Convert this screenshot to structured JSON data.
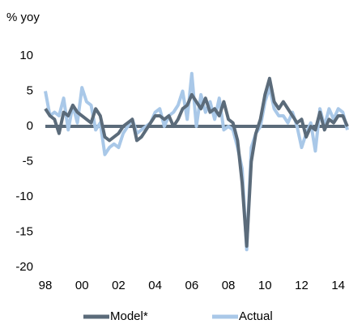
{
  "chart_data": {
    "type": "line",
    "y_label": "% yoy",
    "x": [
      1998,
      1998.25,
      1998.5,
      1998.75,
      1999,
      1999.25,
      1999.5,
      1999.75,
      2000,
      2000.25,
      2000.5,
      2000.75,
      2001,
      2001.25,
      2001.5,
      2001.75,
      2002,
      2002.25,
      2002.5,
      2002.75,
      2003,
      2003.25,
      2003.5,
      2003.75,
      2004,
      2004.25,
      2004.5,
      2004.75,
      2005,
      2005.25,
      2005.5,
      2005.75,
      2006,
      2006.25,
      2006.5,
      2006.75,
      2007,
      2007.25,
      2007.5,
      2007.75,
      2008,
      2008.25,
      2008.5,
      2008.75,
      2009,
      2009.25,
      2009.5,
      2009.75,
      2010,
      2010.25,
      2010.5,
      2010.75,
      2011,
      2011.25,
      2011.5,
      2011.75,
      2012,
      2012.25,
      2012.5,
      2012.75,
      2013,
      2013.25,
      2013.5,
      2013.75,
      2014,
      2014.25,
      2014.5
    ],
    "series": [
      {
        "name": "Model*",
        "color": "#5b6b7a",
        "values": [
          2.5,
          1.5,
          1,
          -1,
          2,
          1.5,
          3,
          2,
          1.5,
          1,
          0.5,
          2.5,
          1.5,
          -1.5,
          -2,
          -1.5,
          -1,
          0,
          0.5,
          1,
          -2,
          -1.5,
          -0.5,
          0.5,
          1.5,
          1.5,
          1,
          1.5,
          0,
          1,
          2.5,
          3,
          4.5,
          3.5,
          2.5,
          4,
          2,
          2.5,
          1.5,
          3.5,
          1,
          0.5,
          -2,
          -8,
          -17,
          -5,
          -1,
          1,
          4.5,
          6.8,
          3.5,
          2.5,
          3.5,
          2.5,
          1.5,
          0.5,
          1,
          -1.5,
          0,
          -0.5,
          2,
          -0.5,
          1,
          0.5,
          1.5,
          1.5,
          0
        ]
      },
      {
        "name": "Actual",
        "color": "#a9c8e8",
        "values": [
          5,
          1.5,
          2,
          1.5,
          4,
          -0.5,
          3,
          0.5,
          5.5,
          3.5,
          3,
          -0.5,
          0.5,
          -4,
          -3,
          -2.5,
          -3,
          -1,
          0,
          1,
          -1,
          -0.5,
          0,
          0.5,
          2,
          2.5,
          0,
          1.5,
          2,
          3,
          5,
          1,
          7.5,
          0,
          4.5,
          2,
          3.5,
          1,
          4,
          -0.5,
          0,
          -0.5,
          -3,
          -6,
          -17.5,
          -3,
          -1,
          0,
          3.5,
          5.5,
          2.5,
          1.5,
          1.5,
          0.5,
          2,
          0,
          -3,
          -1,
          0.5,
          -3.5,
          2.5,
          0,
          2.5,
          1,
          2.5,
          2,
          -0.5
        ]
      }
    ],
    "xlim": [
      1998,
      2014.5
    ],
    "xticks": [
      {
        "value": 1998,
        "label": "98"
      },
      {
        "value": 2000,
        "label": "00"
      },
      {
        "value": 2002,
        "label": "02"
      },
      {
        "value": 2004,
        "label": "04"
      },
      {
        "value": 2006,
        "label": "06"
      },
      {
        "value": 2008,
        "label": "08"
      },
      {
        "value": 2010,
        "label": "10"
      },
      {
        "value": 2012,
        "label": "12"
      },
      {
        "value": 2014,
        "label": "14"
      }
    ],
    "ylim": [
      -20,
      10
    ],
    "yticks": [
      10,
      5,
      0,
      -5,
      -10,
      -15,
      -20
    ],
    "grid": false,
    "legend": "bottom"
  }
}
